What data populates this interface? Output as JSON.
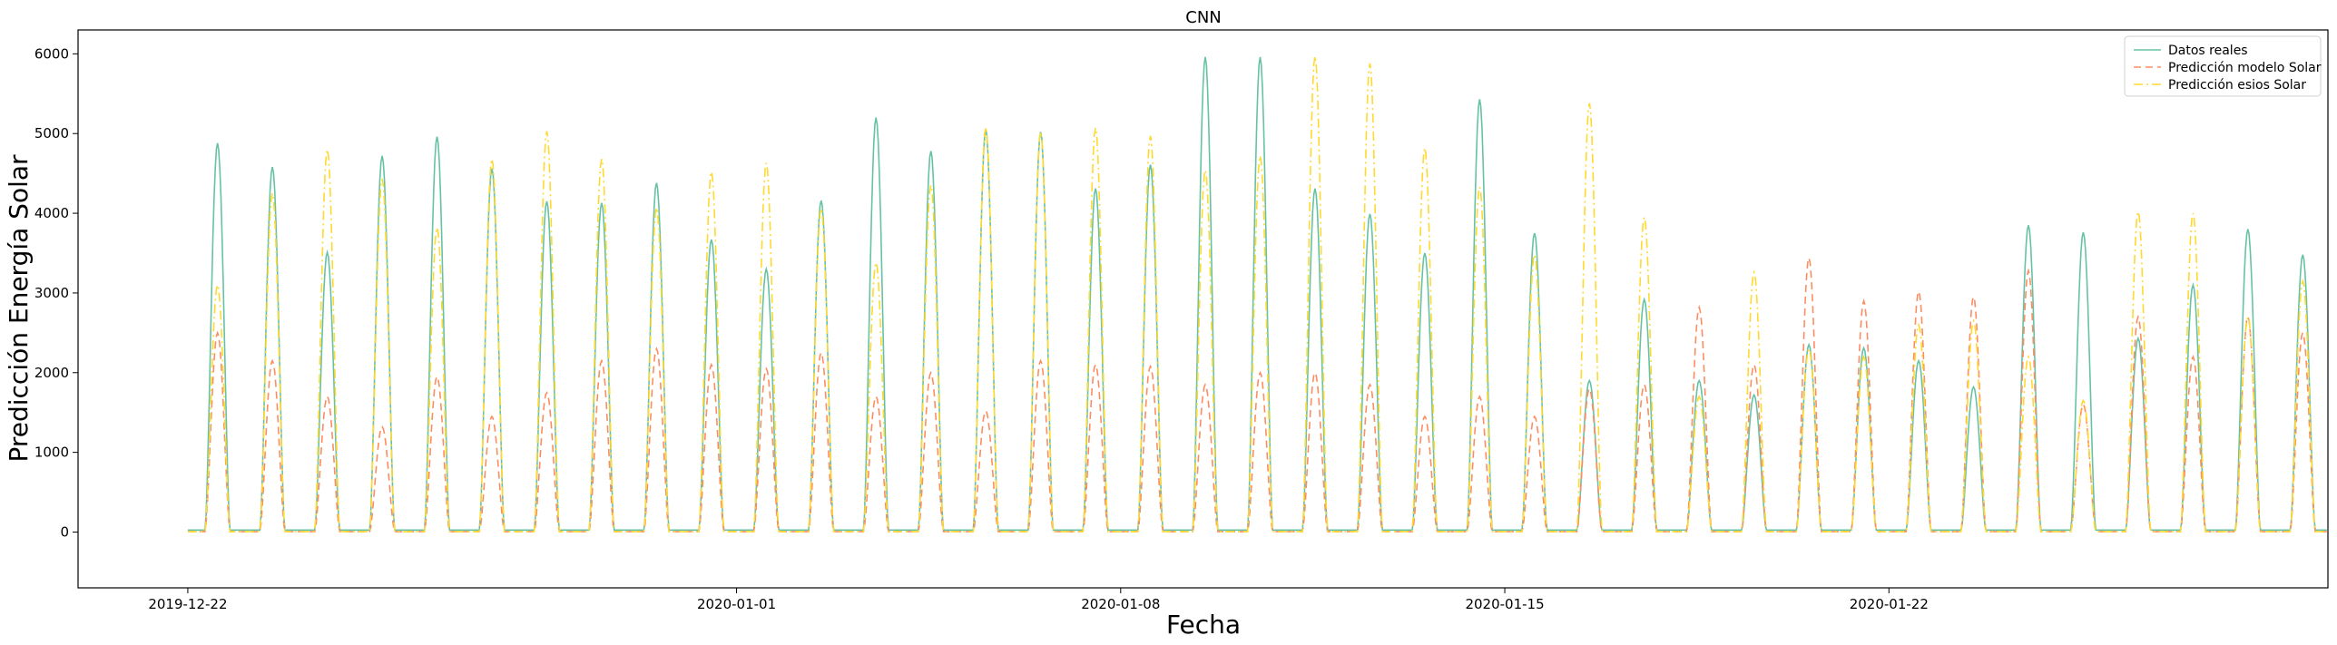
{
  "chart_data": {
    "type": "line",
    "title": "CNN",
    "xlabel": "Fecha",
    "ylabel": "Predicción Energía Solar",
    "xlim": [
      "2019-12-20",
      "2020-01-30"
    ],
    "ylim": [
      -700,
      6300
    ],
    "yticks": [
      0,
      1000,
      2000,
      3000,
      4000,
      5000,
      6000
    ],
    "xticks": [
      "2019-12-22",
      "2020-01-01",
      "2020-01-08",
      "2020-01-15",
      "2020-01-22"
    ],
    "x_start": "2019-12-22",
    "x_end": "2020-01-29",
    "grid": false,
    "legend_position": "upper right",
    "series": [
      {
        "name": "Datos reales",
        "color": "#66c2a5",
        "style": "solid",
        "daily_peaks": [
          4880,
          4580,
          3510,
          4720,
          4960,
          4560,
          4150,
          4130,
          4380,
          3670,
          3300,
          4160,
          5200,
          4780,
          5050,
          5020,
          4310,
          4610,
          5960,
          5960,
          4310,
          3990,
          3500,
          5430,
          3750,
          1900,
          2920,
          1900,
          1720,
          2350,
          2310,
          2150,
          1820,
          3850,
          3760,
          2430,
          3100,
          3800,
          3480
        ]
      },
      {
        "name": "Predicción modelo Solar",
        "color": "#fc8d62",
        "style": "dashed",
        "daily_peaks": [
          2500,
          2150,
          1700,
          1320,
          1950,
          1450,
          1750,
          2150,
          2300,
          2100,
          2050,
          2250,
          1700,
          2000,
          1520,
          2150,
          2100,
          2080,
          1850,
          2000,
          2000,
          1850,
          1450,
          1700,
          1450,
          1800,
          1850,
          2820,
          2100,
          3440,
          2900,
          3020,
          2950,
          3280,
          1600,
          2700,
          2200,
          2700,
          2500
        ]
      },
      {
        "name": "Predicción esios Solar",
        "color": "#ffd92f",
        "style": "dashdot",
        "daily_peaks": [
          3100,
          4250,
          4800,
          4430,
          3820,
          4680,
          5030,
          4680,
          4070,
          4520,
          4630,
          4060,
          3380,
          4350,
          5080,
          5020,
          5070,
          4970,
          4540,
          4720,
          5970,
          5880,
          4820,
          4330,
          3480,
          5380,
          3950,
          1700,
          3260,
          2300,
          2200,
          2600,
          2650,
          2200,
          1650,
          4020,
          4000,
          2700,
          3150
        ]
      }
    ]
  }
}
